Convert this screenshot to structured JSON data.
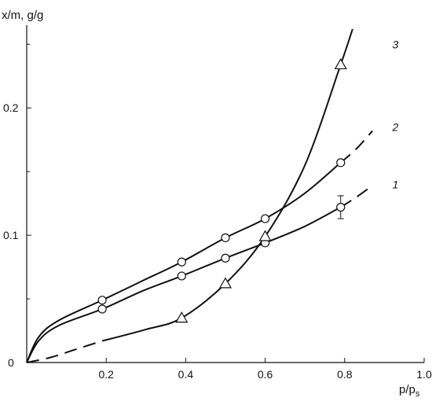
{
  "chart_data": {
    "type": "line",
    "ylabel": "x/m, g/g",
    "xlabel_main": "p/p",
    "xlabel_sub": "s",
    "xlim": [
      0,
      1.0
    ],
    "ylim": [
      0,
      0.265
    ],
    "x_ticks": [
      0.2,
      0.4,
      0.6,
      0.8,
      1.0
    ],
    "x_tick_labels": [
      "0.2",
      "0.4",
      "0.6",
      "0.8",
      "1.0"
    ],
    "y_ticks": [
      0.1,
      0.2
    ],
    "y_tick_labels": [
      "0.1",
      "0.2"
    ],
    "origin_label": "0",
    "series": [
      {
        "name": "1",
        "marker": "circle",
        "points": [
          [
            0.19,
            0.042
          ],
          [
            0.39,
            0.068
          ],
          [
            0.5,
            0.082
          ],
          [
            0.6,
            0.094
          ],
          [
            0.79,
            0.122
          ]
        ],
        "curve_solid": [
          [
            0,
            0
          ],
          [
            0.03,
            0.017
          ],
          [
            0.08,
            0.029
          ],
          [
            0.19,
            0.042
          ],
          [
            0.29,
            0.056
          ],
          [
            0.39,
            0.068
          ],
          [
            0.5,
            0.082
          ],
          [
            0.6,
            0.094
          ],
          [
            0.7,
            0.107
          ],
          [
            0.79,
            0.122
          ]
        ],
        "curve_dashed": [
          [
            0.79,
            0.122
          ],
          [
            0.83,
            0.13
          ],
          [
            0.87,
            0.139
          ]
        ],
        "error_bar": {
          "x": 0.79,
          "low": 0.113,
          "high": 0.131
        }
      },
      {
        "name": "2",
        "marker": "circle",
        "points": [
          [
            0.19,
            0.049
          ],
          [
            0.39,
            0.079
          ],
          [
            0.5,
            0.098
          ],
          [
            0.6,
            0.113
          ],
          [
            0.79,
            0.157
          ]
        ],
        "curve_solid": [
          [
            0,
            0
          ],
          [
            0.03,
            0.02
          ],
          [
            0.08,
            0.033
          ],
          [
            0.19,
            0.049
          ],
          [
            0.29,
            0.064
          ],
          [
            0.39,
            0.079
          ],
          [
            0.5,
            0.098
          ],
          [
            0.6,
            0.113
          ],
          [
            0.7,
            0.133
          ],
          [
            0.79,
            0.157
          ]
        ],
        "curve_dashed": [
          [
            0.79,
            0.157
          ],
          [
            0.83,
            0.168
          ],
          [
            0.87,
            0.182
          ]
        ]
      },
      {
        "name": "3",
        "marker": "triangle",
        "points": [
          [
            0.39,
            0.035
          ],
          [
            0.5,
            0.062
          ],
          [
            0.6,
            0.099
          ],
          [
            0.79,
            0.234
          ]
        ],
        "curve_dashed": [
          [
            0,
            0
          ],
          [
            0.06,
            0.004
          ],
          [
            0.12,
            0.01
          ],
          [
            0.19,
            0.017
          ]
        ],
        "curve_solid": [
          [
            0.19,
            0.017
          ],
          [
            0.3,
            0.026
          ],
          [
            0.39,
            0.035
          ],
          [
            0.5,
            0.062
          ],
          [
            0.6,
            0.099
          ],
          [
            0.7,
            0.155
          ],
          [
            0.79,
            0.234
          ],
          [
            0.82,
            0.262
          ]
        ]
      }
    ]
  }
}
